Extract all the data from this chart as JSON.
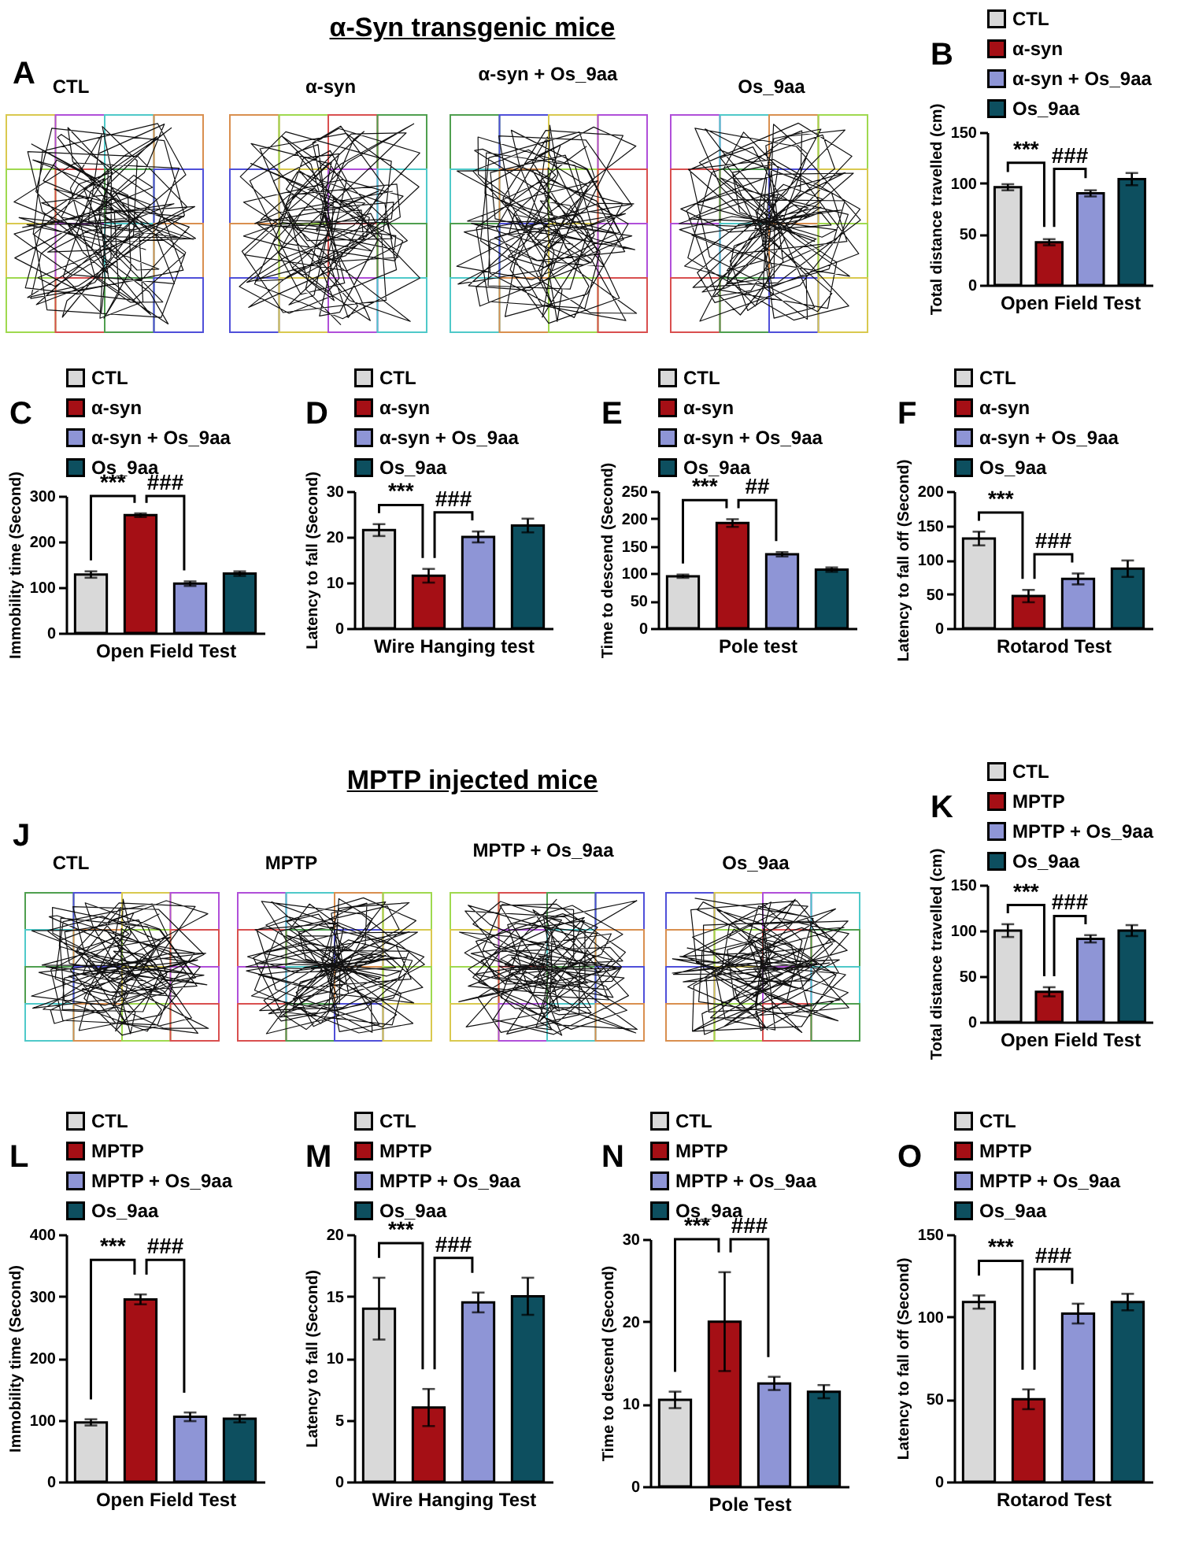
{
  "chart_data": [
    {
      "type": "other",
      "title": "α-Syn transgenic mice",
      "annotations": [
        "A",
        "CTL",
        "α-syn",
        "α-syn + Os_9aa",
        "Os_9aa"
      ]
    },
    {
      "type": "bar",
      "title": "B",
      "categories": [
        null
      ],
      "series": [
        {
          "name": "CTL",
          "color": "#d9d9d9",
          "values": [
            96
          ],
          "errors": [
            3
          ]
        },
        {
          "name": "α-syn",
          "color": "#a50f15",
          "values": [
            42
          ],
          "errors": [
            3
          ]
        },
        {
          "name": "α-syn + Os_9aa",
          "color": "#8e95d6",
          "values": [
            90
          ],
          "errors": [
            3
          ]
        },
        {
          "name": "Os_9aa",
          "color": "#0d4f5f",
          "values": [
            104
          ],
          "errors": [
            6
          ]
        }
      ],
      "ylabel": "Total distance travelled (cm)",
      "xlabel": "Open Field Test",
      "ylim": [
        0,
        150
      ],
      "yticks": [
        0,
        50,
        100,
        150
      ],
      "legend": "top",
      "tick_labels": "y",
      "annotations": [
        "***",
        "###"
      ]
    },
    {
      "type": "bar",
      "title": "C",
      "categories": [
        null
      ],
      "series": [
        {
          "name": "CTL",
          "color": "#d9d9d9",
          "values": [
            128
          ],
          "errors": [
            7
          ]
        },
        {
          "name": "α-syn",
          "color": "#a50f15",
          "values": [
            258
          ],
          "errors": [
            4
          ]
        },
        {
          "name": "α-syn + Os_9aa",
          "color": "#8e95d6",
          "values": [
            108
          ],
          "errors": [
            5
          ]
        },
        {
          "name": "Os_9aa",
          "color": "#0d4f5f",
          "values": [
            130
          ],
          "errors": [
            5
          ]
        }
      ],
      "ylabel": "Immobility time (Second)",
      "xlabel": "Open Field Test",
      "ylim": [
        0,
        300
      ],
      "yticks": [
        0,
        100,
        200,
        300
      ],
      "legend": "top",
      "tick_labels": "y",
      "annotations": [
        "***",
        "###"
      ]
    },
    {
      "type": "bar",
      "title": "D",
      "categories": [
        null
      ],
      "series": [
        {
          "name": "CTL",
          "color": "#d9d9d9",
          "values": [
            21.5
          ],
          "errors": [
            1.3
          ]
        },
        {
          "name": "α-syn",
          "color": "#a50f15",
          "values": [
            11.5
          ],
          "errors": [
            1.5
          ]
        },
        {
          "name": "α-syn + Os_9aa",
          "color": "#8e95d6",
          "values": [
            20
          ],
          "errors": [
            1.2
          ]
        },
        {
          "name": "Os_9aa",
          "color": "#0d4f5f",
          "values": [
            22.5
          ],
          "errors": [
            1.5
          ]
        }
      ],
      "ylabel": "Latency to fall (Second)",
      "xlabel": "Wire Hanging test",
      "ylim": [
        0,
        30
      ],
      "yticks": [
        0,
        10,
        20,
        30
      ],
      "legend": "top",
      "tick_labels": "y",
      "annotations": [
        "***",
        "###"
      ]
    },
    {
      "type": "bar",
      "title": "E",
      "categories": [
        null
      ],
      "series": [
        {
          "name": "CTL",
          "color": "#d9d9d9",
          "values": [
            95
          ],
          "errors": [
            3
          ]
        },
        {
          "name": "α-syn",
          "color": "#a50f15",
          "values": [
            192
          ],
          "errors": [
            7
          ]
        },
        {
          "name": "α-syn + Os_9aa",
          "color": "#8e95d6",
          "values": [
            135
          ],
          "errors": [
            4
          ]
        },
        {
          "name": "Os_9aa",
          "color": "#0d4f5f",
          "values": [
            107
          ],
          "errors": [
            4
          ]
        }
      ],
      "ylabel": "Time to descend (Second)",
      "xlabel": "Pole test",
      "ylim": [
        0,
        250
      ],
      "yticks": [
        0,
        50,
        100,
        150,
        200,
        250
      ],
      "legend": "top",
      "tick_labels": "y",
      "annotations": [
        "***",
        "##"
      ]
    },
    {
      "type": "bar",
      "title": "F",
      "categories": [
        null
      ],
      "series": [
        {
          "name": "CTL",
          "color": "#d9d9d9",
          "values": [
            131
          ],
          "errors": [
            10
          ]
        },
        {
          "name": "α-syn",
          "color": "#a50f15",
          "values": [
            47
          ],
          "errors": [
            9
          ]
        },
        {
          "name": "α-syn + Os_9aa",
          "color": "#8e95d6",
          "values": [
            72
          ],
          "errors": [
            8
          ]
        },
        {
          "name": "Os_9aa",
          "color": "#0d4f5f",
          "values": [
            87
          ],
          "errors": [
            12
          ]
        }
      ],
      "ylabel": "Latency to fall off (Second)",
      "xlabel": "Rotarod Test",
      "ylim": [
        0,
        200
      ],
      "yticks": [
        0,
        50,
        100,
        150,
        200
      ],
      "legend": "top",
      "tick_labels": "y",
      "annotations": [
        "***",
        "###"
      ]
    },
    {
      "type": "other",
      "title": "MPTP injected mice",
      "annotations": [
        "J",
        "CTL",
        "MPTP",
        "MPTP + Os_9aa",
        "Os_9aa"
      ]
    },
    {
      "type": "bar",
      "title": "K",
      "categories": [
        null
      ],
      "series": [
        {
          "name": "CTL",
          "color": "#d9d9d9",
          "values": [
            100
          ],
          "errors": [
            7
          ]
        },
        {
          "name": "MPTP",
          "color": "#a50f15",
          "values": [
            33
          ],
          "errors": [
            5
          ]
        },
        {
          "name": "MPTP + Os_9aa",
          "color": "#8e95d6",
          "values": [
            91
          ],
          "errors": [
            4
          ]
        },
        {
          "name": "Os_9aa",
          "color": "#0d4f5f",
          "values": [
            100
          ],
          "errors": [
            6
          ]
        }
      ],
      "ylabel": "Total distance travelled (cm)",
      "xlabel": "Open Field Test",
      "ylim": [
        0,
        150
      ],
      "yticks": [
        0,
        50,
        100,
        150
      ],
      "legend": "top",
      "tick_labels": "y",
      "annotations": [
        "***",
        "###"
      ]
    },
    {
      "type": "bar",
      "title": "L",
      "categories": [
        null
      ],
      "series": [
        {
          "name": "CTL",
          "color": "#d9d9d9",
          "values": [
            96
          ],
          "errors": [
            5
          ]
        },
        {
          "name": "MPTP",
          "color": "#a50f15",
          "values": [
            295
          ],
          "errors": [
            8
          ]
        },
        {
          "name": "MPTP + Os_9aa",
          "color": "#8e95d6",
          "values": [
            105
          ],
          "errors": [
            7
          ]
        },
        {
          "name": "Os_9aa",
          "color": "#0d4f5f",
          "values": [
            102
          ],
          "errors": [
            6
          ]
        }
      ],
      "ylabel": "Immobility time (Second)",
      "xlabel": "Open Field Test",
      "ylim": [
        0,
        400
      ],
      "yticks": [
        0,
        100,
        200,
        300,
        400
      ],
      "legend": "top",
      "tick_labels": "y",
      "annotations": [
        "***",
        "###"
      ]
    },
    {
      "type": "bar",
      "title": "M",
      "categories": [
        null
      ],
      "series": [
        {
          "name": "CTL",
          "color": "#d9d9d9",
          "values": [
            14
          ],
          "errors": [
            2.5
          ]
        },
        {
          "name": "MPTP",
          "color": "#a50f15",
          "values": [
            6
          ],
          "errors": [
            1.5
          ]
        },
        {
          "name": "MPTP + Os_9aa",
          "color": "#8e95d6",
          "values": [
            14.5
          ],
          "errors": [
            0.8
          ]
        },
        {
          "name": "Os_9aa",
          "color": "#0d4f5f",
          "values": [
            15
          ],
          "errors": [
            1.5
          ]
        }
      ],
      "ylabel": "Latency to fall (Second)",
      "xlabel": "Wire Hanging Test",
      "ylim": [
        0,
        20
      ],
      "yticks": [
        0,
        5,
        10,
        15,
        20
      ],
      "legend": "top",
      "tick_labels": "y",
      "annotations": [
        "***",
        "###"
      ]
    },
    {
      "type": "bar",
      "title": "N",
      "categories": [
        null
      ],
      "series": [
        {
          "name": "CTL",
          "color": "#d9d9d9",
          "values": [
            10.5
          ],
          "errors": [
            1
          ]
        },
        {
          "name": "MPTP",
          "color": "#a50f15",
          "values": [
            20
          ],
          "errors": [
            6
          ]
        },
        {
          "name": "MPTP + Os_9aa",
          "color": "#8e95d6",
          "values": [
            12.5
          ],
          "errors": [
            0.8
          ]
        },
        {
          "name": "Os_9aa",
          "color": "#0d4f5f",
          "values": [
            11.5
          ],
          "errors": [
            0.8
          ]
        }
      ],
      "ylabel": "Time to descend (Second)",
      "xlabel": "Pole Test",
      "ylim": [
        0,
        30
      ],
      "yticks": [
        0,
        10,
        20,
        30
      ],
      "legend": "top",
      "tick_labels": "y",
      "annotations": [
        "***",
        "###"
      ]
    },
    {
      "type": "bar",
      "title": "O",
      "categories": [
        null
      ],
      "series": [
        {
          "name": "CTL",
          "color": "#d9d9d9",
          "values": [
            109
          ],
          "errors": [
            4
          ]
        },
        {
          "name": "MPTP",
          "color": "#a50f15",
          "values": [
            50
          ],
          "errors": [
            6
          ]
        },
        {
          "name": "MPTP + Os_9aa",
          "color": "#8e95d6",
          "values": [
            102
          ],
          "errors": [
            6
          ]
        },
        {
          "name": "Os_9aa",
          "color": "#0d4f5f",
          "values": [
            109
          ],
          "errors": [
            5
          ]
        }
      ],
      "ylabel": "Latency to fall off (Second)",
      "xlabel": "Rotarod Test",
      "ylim": [
        0,
        150
      ],
      "yticks": [
        0,
        50,
        100,
        150
      ],
      "legend": "top",
      "tick_labels": "y",
      "annotations": [
        "***",
        "###"
      ]
    }
  ]
}
